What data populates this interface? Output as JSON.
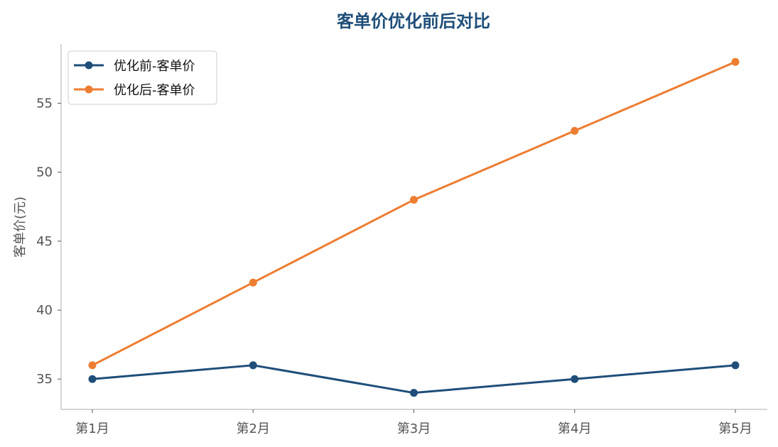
{
  "chart_data": {
    "type": "line",
    "title": "客单价优化前后对比",
    "xlabel": "",
    "ylabel": "客单价(元)",
    "categories": [
      "第1月",
      "第2月",
      "第3月",
      "第4月",
      "第5月"
    ],
    "ylim": [
      32.8,
      59.3
    ],
    "yticks": [
      35,
      40,
      45,
      50,
      55
    ],
    "grid": false,
    "legend_position": "top-left",
    "series": [
      {
        "name": "优化前-客单价",
        "color": "#1f4e79",
        "values": [
          35,
          36,
          34,
          35,
          36
        ]
      },
      {
        "name": "优化后-客单价",
        "color": "#ed7d31",
        "values": [
          36,
          42,
          48,
          53,
          58
        ]
      }
    ]
  }
}
